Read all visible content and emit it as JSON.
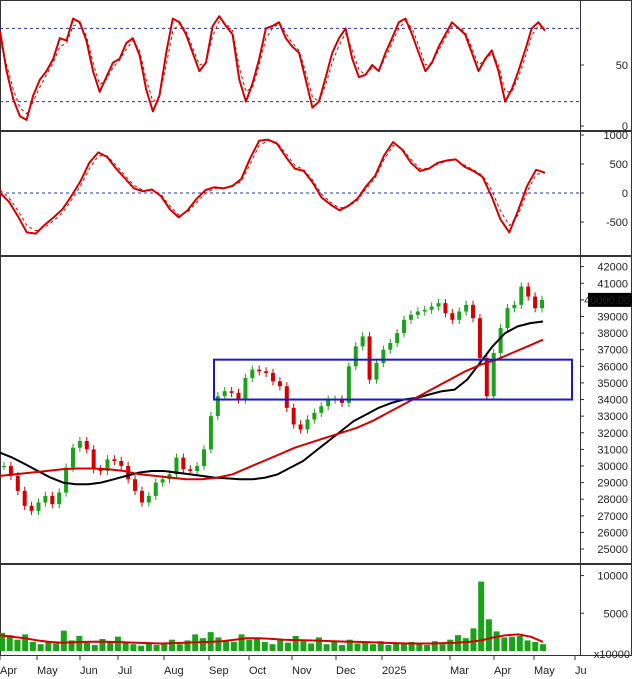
{
  "chart_data": [
    {
      "type": "line",
      "panel": "stochastic-oscillator",
      "ylim": [
        0,
        100
      ],
      "yticks": [
        "50",
        "0"
      ],
      "reference_lines": [
        80,
        20
      ],
      "series": [
        {
          "color": "#d40000",
          "values": [
            78,
            45,
            22,
            8,
            5,
            25,
            38,
            45,
            55,
            72,
            70,
            88,
            85,
            70,
            45,
            28,
            40,
            52,
            55,
            68,
            72,
            58,
            30,
            12,
            25,
            60,
            88,
            85,
            75,
            60,
            45,
            52,
            82,
            90,
            82,
            75,
            38,
            20,
            35,
            55,
            80,
            82,
            85,
            72,
            65,
            60,
            38,
            15,
            20,
            40,
            60,
            72,
            80,
            55,
            40,
            42,
            50,
            45,
            60,
            72,
            85,
            88,
            75,
            60,
            45,
            52,
            65,
            75,
            85,
            80,
            75,
            60,
            45,
            55,
            62,
            45,
            20,
            30,
            45,
            62,
            80,
            85,
            78
          ]
        },
        {
          "color": "#d40000",
          "dashed": true,
          "values": [
            70,
            50,
            30,
            15,
            10,
            20,
            32,
            42,
            52,
            65,
            68,
            82,
            84,
            74,
            52,
            34,
            38,
            48,
            54,
            63,
            70,
            62,
            38,
            20,
            24,
            50,
            78,
            84,
            78,
            64,
            50,
            52,
            74,
            86,
            84,
            78,
            48,
            28,
            32,
            50,
            72,
            80,
            84,
            76,
            68,
            62,
            44,
            24,
            20,
            34,
            52,
            66,
            76,
            62,
            46,
            42,
            48,
            46,
            56,
            68,
            80,
            86,
            80,
            66,
            50,
            52,
            62,
            72,
            82,
            81,
            77,
            64,
            50,
            54,
            60,
            50,
            28,
            28,
            40,
            56,
            74,
            82,
            80
          ]
        }
      ]
    },
    {
      "type": "line",
      "panel": "macd",
      "ylim": [
        -1000,
        1000
      ],
      "yticks": [
        "1000",
        "500",
        "0",
        "-500"
      ],
      "reference_lines": [
        0
      ],
      "series": [
        {
          "color": "#d40000",
          "values": [
            0,
            -150,
            -400,
            -680,
            -700,
            -550,
            -420,
            -280,
            -50,
            200,
            520,
            700,
            620,
            420,
            250,
            80,
            30,
            60,
            -50,
            -280,
            -420,
            -300,
            -100,
            50,
            100,
            80,
            120,
            240,
            600,
            900,
            920,
            850,
            620,
            420,
            380,
            180,
            -80,
            -200,
            -300,
            -220,
            -100,
            120,
            300,
            650,
            880,
            750,
            520,
            380,
            420,
            520,
            560,
            580,
            450,
            380,
            280,
            -50,
            -450,
            -680,
            -300,
            120,
            400,
            350
          ]
        },
        {
          "color": "#d40000",
          "dashed": true,
          "values": [
            50,
            -80,
            -300,
            -560,
            -650,
            -590,
            -480,
            -340,
            -120,
            120,
            420,
            640,
            640,
            480,
            300,
            130,
            50,
            50,
            -20,
            -220,
            -380,
            -330,
            -160,
            0,
            80,
            85,
            110,
            200,
            500,
            820,
            900,
            870,
            680,
            480,
            400,
            220,
            -20,
            -160,
            -260,
            -230,
            -130,
            80,
            260,
            580,
            820,
            770,
            580,
            420,
            420,
            500,
            550,
            570,
            480,
            400,
            300,
            60,
            -300,
            -560,
            -380,
            20,
            320,
            350
          ]
        }
      ]
    },
    {
      "type": "candlestick",
      "panel": "price",
      "ylim": [
        24400,
        42400
      ],
      "yticks": [
        "42000",
        "41000",
        "40000",
        "39000",
        "38000",
        "37000",
        "36000",
        "35000",
        "34000",
        "33000",
        "32000",
        "31000",
        "30000",
        "29000",
        "28000",
        "27000",
        "26000",
        "25000"
      ],
      "last_price_label": "40000.00",
      "close": [
        30000,
        29400,
        28500,
        27600,
        27300,
        27800,
        28200,
        27700,
        28400,
        29900,
        31100,
        31500,
        31000,
        29800,
        29700,
        30400,
        30300,
        30000,
        29200,
        28500,
        27800,
        28200,
        29000,
        29200,
        29500,
        30500,
        29800,
        29700,
        30000,
        31000,
        33000,
        34200,
        34500,
        34400,
        34000,
        35300,
        35800,
        35700,
        35600,
        35100,
        34800,
        33500,
        32500,
        32200,
        32800,
        33200,
        33600,
        34000,
        34000,
        33800,
        36000,
        37200,
        37800,
        35200,
        36200,
        37000,
        37400,
        38000,
        38800,
        39100,
        39300,
        39400,
        39600,
        39800,
        39200,
        38800,
        39300,
        39700,
        38900,
        36500,
        34200,
        36800,
        38300,
        39500,
        39700,
        40800,
        40200,
        39500,
        40000
      ],
      "moving_averages": [
        {
          "color": "#000000",
          "values": [
            30800,
            30500,
            30100,
            29700,
            29300,
            29000,
            28900,
            28900,
            29000,
            29200,
            29400,
            29600,
            29700,
            29700,
            29600,
            29500,
            29400,
            29300,
            29250,
            29200,
            29200,
            29300,
            29500,
            29900,
            30300,
            30900,
            31500,
            32100,
            32700,
            33100,
            33500,
            33800,
            34000,
            34100,
            34300,
            34500,
            34600,
            35200,
            36200,
            37200,
            38000,
            38400,
            38600,
            38700
          ]
        },
        {
          "color": "#d40000",
          "values": [
            29400,
            29500,
            29600,
            29700,
            29800,
            29850,
            29850,
            29800,
            29700,
            29500,
            29400,
            29300,
            29200,
            29200,
            29300,
            29500,
            29900,
            30300,
            30700,
            31100,
            31400,
            31700,
            32000,
            32300,
            32700,
            33200,
            33700,
            34200,
            34700,
            35200,
            35700,
            36100,
            36400,
            36800,
            37200,
            37600
          ]
        }
      ],
      "annotation_box": {
        "price_low": 34000,
        "price_high": 36400,
        "x_from": "Sep",
        "x_to": "May"
      }
    },
    {
      "type": "bar",
      "panel": "volume",
      "ylim": [
        0,
        11000
      ],
      "yticks": [
        "10000",
        "5000"
      ],
      "multiplier_label": "x10000",
      "values": [
        2400,
        2100,
        1500,
        2200,
        1200,
        900,
        1300,
        1000,
        2700,
        1400,
        2000,
        1100,
        800,
        1600,
        1300,
        1900,
        1200,
        900,
        700,
        1100,
        800,
        1000,
        1500,
        900,
        1400,
        2200,
        1700,
        2500,
        1800,
        1300,
        1200,
        2200,
        1500,
        1800,
        1200,
        900,
        1600,
        1100,
        2000,
        1300,
        1000,
        1800,
        900,
        1200,
        800,
        1500,
        1000,
        1100,
        900,
        1300,
        800,
        1100,
        900,
        1200,
        1000,
        800,
        1300,
        900,
        1500,
        2100,
        1700,
        3000,
        9200,
        4200,
        2600,
        1800,
        1900,
        2000,
        1400,
        1200,
        900
      ],
      "average_line": {
        "color": "#d40000",
        "values": [
          2100,
          1900,
          1700,
          1400,
          1200,
          1100,
          1150,
          1200,
          1250,
          1200,
          1150,
          1100,
          1050,
          1000,
          1050,
          1100,
          1150,
          1200,
          1300,
          1500,
          1700,
          1700,
          1600,
          1500,
          1450,
          1400,
          1350,
          1300,
          1250,
          1200,
          1150,
          1100,
          1050,
          1000,
          1000,
          1000,
          1050,
          1100,
          1200,
          1400,
          1800,
          2100,
          2200,
          1900,
          1200
        ]
      }
    }
  ],
  "x_axis": {
    "labels": [
      "Apr",
      "May",
      "Jun",
      "Jul",
      "Aug",
      "Sep",
      "Oct",
      "Nov",
      "Dec",
      "2025",
      "Mar",
      "Apr",
      "May",
      "Ju"
    ]
  }
}
